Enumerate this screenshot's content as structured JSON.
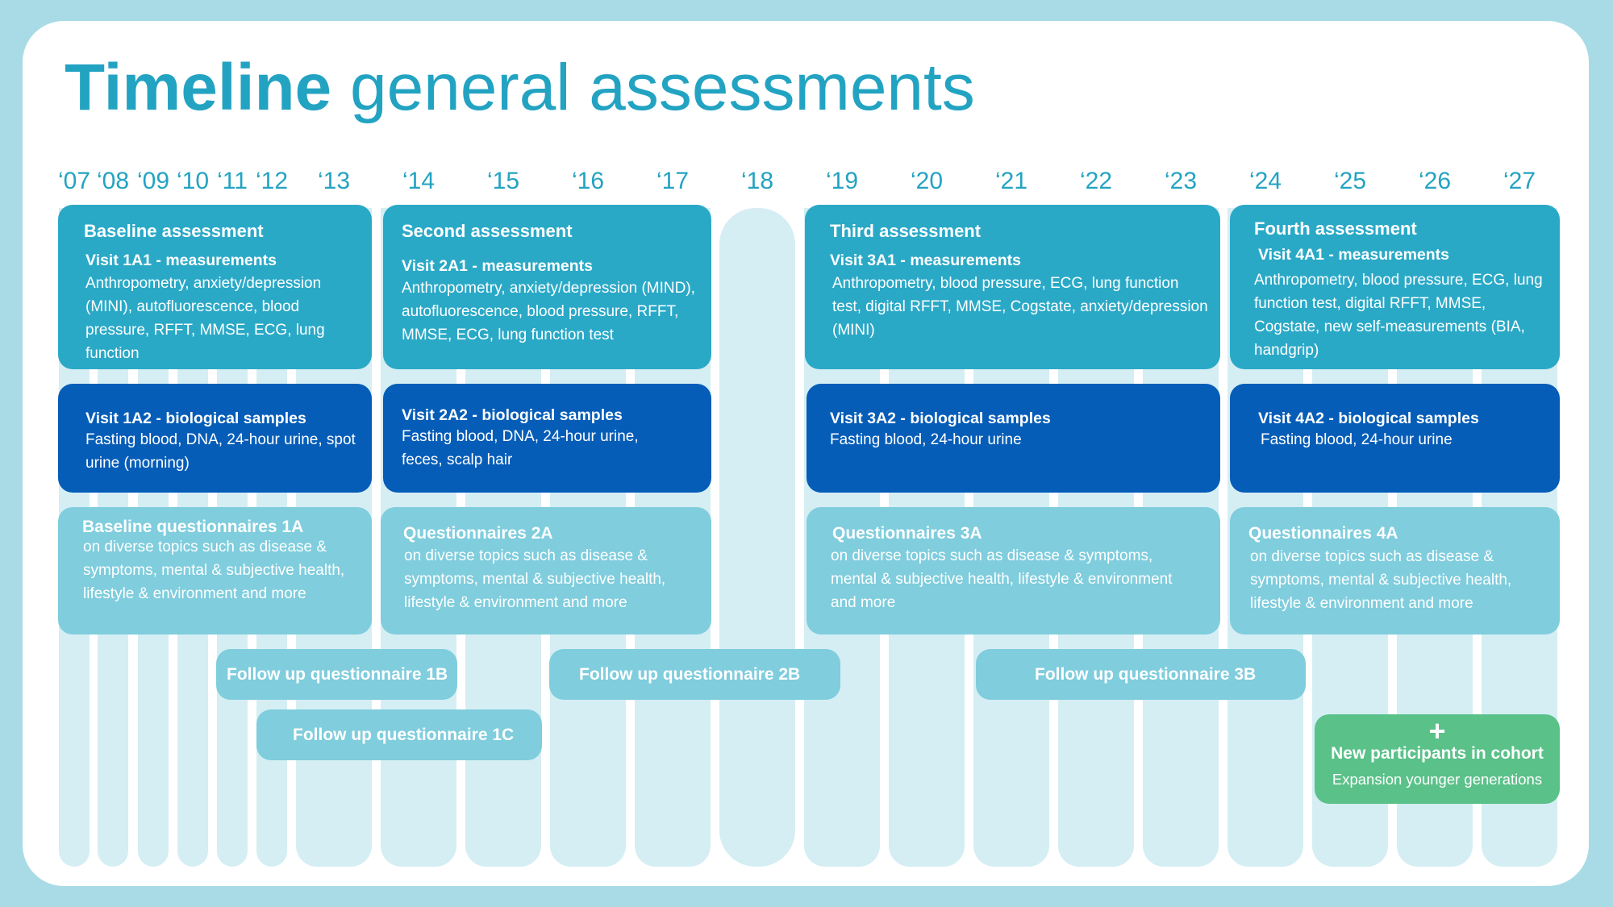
{
  "title": {
    "bold": "Timeline",
    "light": "general assessments"
  },
  "years": [
    "‘07",
    "‘08",
    "‘09",
    "‘10",
    "‘11",
    "‘12",
    "‘13",
    "‘14",
    "‘15",
    "‘16",
    "‘17",
    "‘18",
    "‘19",
    "‘20",
    "‘21",
    "‘22",
    "‘23",
    "‘24",
    "‘25",
    "‘26",
    "‘27"
  ],
  "assessments": [
    {
      "title": "Baseline assessment",
      "measurements": {
        "title": "Visit 1A1 - measurements",
        "text": "Anthropometry, anxiety/depression (MINI),  autofluorescence, blood pressure, RFFT, MMSE, ECG, lung function"
      },
      "samples": {
        "title": "Visit 1A2 - biological samples",
        "text": "Fasting blood, DNA, 24-hour urine, spot urine (morning)"
      },
      "questionnaires": {
        "title": "Baseline questionnaires 1A",
        "text": "on diverse topics such as disease & symptoms, mental & subjective health, lifestyle & environment and more"
      }
    },
    {
      "title": "Second assessment",
      "measurements": {
        "title": "Visit 2A1 - measurements",
        "text": "Anthropometry, anxiety/depression (MIND),  autofluorescence, blood pressure, RFFT, MMSE, ECG, lung function test"
      },
      "samples": {
        "title": "Visit 2A2 - biological samples",
        "text": "Fasting blood, DNA, 24-hour urine, feces, scalp hair"
      },
      "questionnaires": {
        "title": "Questionnaires  2A",
        "text": "on diverse topics such as disease & symptoms, mental & subjective health, lifestyle & environment and more"
      }
    },
    {
      "title": "Third assessment",
      "measurements": {
        "title": "Visit 3A1 - measurements",
        "text": "Anthropometry, blood pressure, ECG, lung function test, digital RFFT, MMSE,  Cogstate, anxiety/depression (MINI)"
      },
      "samples": {
        "title": "Visit 3A2 - biological samples",
        "text": "Fasting blood, 24-hour urine"
      },
      "questionnaires": {
        "title": "Questionnaires 3A",
        "text": "on diverse topics such as disease & symptoms, mental & subjective health, lifestyle & environment and more"
      }
    },
    {
      "title": "Fourth assessment",
      "measurements": {
        "title": "Visit 4A1 - measurements",
        "text": "Anthropometry, blood pressure, ECG, lung function test, digital RFFT, MMSE, Cogstate, new self-measurements (BIA, handgrip)"
      },
      "samples": {
        "title": "Visit 4A2 - biological samples",
        "text": "Fasting blood, 24-hour urine"
      },
      "questionnaires": {
        "title": "Questionnaires 4A",
        "text": "on diverse topics such as disease & symptoms, mental & subjective health, lifestyle & environment and more"
      }
    }
  ],
  "followups": [
    "Follow up questionnaire 1B",
    "Follow up questionnaire 2B",
    "Follow up questionnaire 3B",
    "Follow up questionnaire 1C"
  ],
  "new_participants": {
    "icon": "plus-icon",
    "plus": "+",
    "title": "New participants in cohort",
    "text": "Expansion younger generations"
  },
  "colors": {
    "background": "#a8dbe6",
    "accent": "#23a3c2",
    "measurements": "#2aa9c7",
    "samples": "#055db8",
    "questionnaires": "#7fcddd",
    "columns": "#d5eef3",
    "new": "#5ac189"
  }
}
